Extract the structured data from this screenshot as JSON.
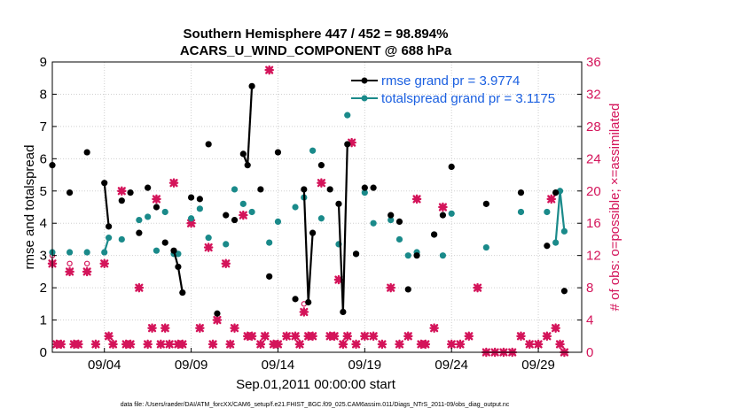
{
  "colors": {
    "rmse": "#000000",
    "spread": "#1a8a8a",
    "obs": "#d4145a",
    "legend_text": "#1a5fe0"
  },
  "chart_data": {
    "type": "line",
    "title": "Southern Hemisphere 447 / 452 = 98.894%",
    "subtitle": "ACARS_U_WIND_COMPONENT @ 688 hPa",
    "xlabel": "Sep.01,2011 00:00:00 start",
    "ylabel": "rmse and totalspread",
    "ylabel_right": "# of obs: o=possible; ×=assimilated",
    "footer": "data file: /Users/raeder/DAI/ATM_forcXX/CAM6_setup/f.e21.FHIST_BGC.f09_025.CAM6assim.011/Diags_NTrS_2011-09/obs_diag_output.nc",
    "xlim": [
      0.0,
      30.5
    ],
    "ylim": [
      0,
      9
    ],
    "ylim_right": [
      0,
      36
    ],
    "yticks": [
      0,
      1,
      2,
      3,
      4,
      5,
      6,
      7,
      8,
      9
    ],
    "yticks_right": [
      0,
      4,
      8,
      12,
      16,
      20,
      24,
      28,
      32,
      36
    ],
    "xticks": [
      {
        "value": 3.0,
        "label": "09/04"
      },
      {
        "value": 8.0,
        "label": "09/09"
      },
      {
        "value": 13.0,
        "label": "09/14"
      },
      {
        "value": 18.0,
        "label": "09/19"
      },
      {
        "value": 23.0,
        "label": "09/24"
      },
      {
        "value": 28.0,
        "label": "09/29"
      }
    ],
    "legend": [
      {
        "name": "rmse grand pr = 3.9774",
        "series": "rmse"
      },
      {
        "name": "totalspread grand pr = 3.1175",
        "series": "spread"
      }
    ],
    "series": [
      {
        "name": "rmse",
        "points": [
          [
            0.0,
            5.8
          ],
          [
            1.0,
            4.95
          ],
          [
            2.0,
            6.2
          ],
          [
            3.0,
            5.25
          ],
          [
            3.25,
            3.9
          ],
          [
            4.0,
            4.7
          ],
          [
            4.5,
            4.95
          ],
          [
            5.0,
            3.7
          ],
          [
            5.5,
            5.1
          ],
          [
            6.0,
            4.5
          ],
          [
            6.5,
            3.4
          ],
          [
            7.0,
            3.15
          ],
          [
            7.25,
            2.65
          ],
          [
            7.5,
            1.85
          ],
          [
            8.0,
            4.8
          ],
          [
            8.5,
            4.75
          ],
          [
            9.0,
            6.45
          ],
          [
            9.5,
            1.2
          ],
          [
            10.0,
            4.25
          ],
          [
            10.5,
            4.1
          ],
          [
            11.0,
            6.15
          ],
          [
            11.25,
            5.8
          ],
          [
            11.5,
            8.25
          ],
          [
            12.0,
            5.05
          ],
          [
            12.5,
            2.35
          ],
          [
            13.0,
            6.2
          ],
          [
            14.0,
            1.65
          ],
          [
            14.5,
            5.05
          ],
          [
            14.75,
            1.55
          ],
          [
            15.0,
            3.7
          ],
          [
            15.5,
            5.8
          ],
          [
            16.0,
            5.05
          ],
          [
            16.5,
            4.6
          ],
          [
            16.75,
            1.25
          ],
          [
            17.0,
            6.45
          ],
          [
            17.5,
            3.05
          ],
          [
            18.0,
            5.1
          ],
          [
            18.5,
            5.1
          ],
          [
            19.5,
            4.25
          ],
          [
            20.0,
            4.05
          ],
          [
            20.5,
            1.95
          ],
          [
            21.0,
            3.0
          ],
          [
            22.0,
            3.65
          ],
          [
            22.5,
            4.25
          ],
          [
            23.0,
            5.75
          ],
          [
            25.0,
            4.6
          ],
          [
            27.0,
            4.95
          ],
          [
            28.5,
            3.3
          ],
          [
            29.0,
            4.95
          ],
          [
            29.5,
            1.9
          ]
        ]
      },
      {
        "name": "totalspread",
        "points": [
          [
            0.0,
            3.1
          ],
          [
            1.0,
            3.1
          ],
          [
            2.0,
            3.1
          ],
          [
            3.0,
            3.1
          ],
          [
            3.25,
            3.55
          ],
          [
            4.0,
            3.5
          ],
          [
            5.0,
            4.1
          ],
          [
            5.5,
            4.2
          ],
          [
            6.0,
            3.15
          ],
          [
            6.5,
            4.35
          ],
          [
            7.0,
            3.05
          ],
          [
            7.25,
            3.05
          ],
          [
            8.0,
            4.15
          ],
          [
            8.5,
            4.45
          ],
          [
            9.0,
            3.55
          ],
          [
            10.0,
            3.35
          ],
          [
            10.5,
            5.05
          ],
          [
            11.0,
            4.6
          ],
          [
            11.5,
            4.35
          ],
          [
            12.5,
            3.4
          ],
          [
            13.0,
            4.05
          ],
          [
            14.0,
            4.5
          ],
          [
            14.5,
            4.8
          ],
          [
            15.0,
            6.25
          ],
          [
            15.5,
            4.15
          ],
          [
            16.5,
            3.35
          ],
          [
            17.0,
            7.35
          ],
          [
            17.5,
            3.05
          ],
          [
            18.0,
            4.95
          ],
          [
            18.5,
            4.0
          ],
          [
            19.5,
            4.1
          ],
          [
            20.0,
            3.5
          ],
          [
            20.5,
            3.0
          ],
          [
            21.0,
            3.1
          ],
          [
            22.0,
            3.65
          ],
          [
            22.5,
            3.0
          ],
          [
            23.0,
            4.3
          ],
          [
            25.0,
            3.25
          ],
          [
            27.0,
            4.35
          ],
          [
            28.5,
            4.35
          ],
          [
            29.0,
            3.4
          ],
          [
            29.25,
            5.0
          ],
          [
            29.5,
            3.75
          ]
        ]
      },
      {
        "name": "obs assimilated",
        "points": [
          [
            0.0,
            11
          ],
          [
            0.25,
            1
          ],
          [
            0.5,
            1
          ],
          [
            1.0,
            10
          ],
          [
            1.25,
            1
          ],
          [
            1.5,
            1
          ],
          [
            2.0,
            10
          ],
          [
            2.5,
            1
          ],
          [
            3.0,
            11
          ],
          [
            3.25,
            2
          ],
          [
            3.5,
            1
          ],
          [
            4.0,
            20
          ],
          [
            4.25,
            1
          ],
          [
            4.5,
            1
          ],
          [
            5.0,
            8
          ],
          [
            5.5,
            1
          ],
          [
            5.75,
            3
          ],
          [
            6.0,
            19
          ],
          [
            6.25,
            1
          ],
          [
            6.5,
            3
          ],
          [
            6.75,
            1
          ],
          [
            7.0,
            21
          ],
          [
            7.25,
            1
          ],
          [
            7.5,
            1
          ],
          [
            8.0,
            16
          ],
          [
            8.5,
            3
          ],
          [
            9.0,
            13
          ],
          [
            9.25,
            1
          ],
          [
            9.5,
            4
          ],
          [
            10.0,
            11
          ],
          [
            10.25,
            1
          ],
          [
            10.5,
            3
          ],
          [
            11.0,
            17
          ],
          [
            11.25,
            2
          ],
          [
            11.5,
            2
          ],
          [
            12.0,
            1
          ],
          [
            12.25,
            2
          ],
          [
            12.5,
            35
          ],
          [
            12.75,
            1
          ],
          [
            13.0,
            1
          ],
          [
            13.5,
            2
          ],
          [
            14.0,
            2
          ],
          [
            14.25,
            1
          ],
          [
            14.5,
            5
          ],
          [
            14.75,
            2
          ],
          [
            15.0,
            2
          ],
          [
            15.5,
            21
          ],
          [
            16.0,
            2
          ],
          [
            16.25,
            2
          ],
          [
            16.5,
            9
          ],
          [
            16.75,
            1
          ],
          [
            17.0,
            2
          ],
          [
            17.25,
            26
          ],
          [
            17.5,
            1
          ],
          [
            18.0,
            2
          ],
          [
            18.5,
            2
          ],
          [
            19.0,
            1
          ],
          [
            19.5,
            8
          ],
          [
            20.0,
            1
          ],
          [
            20.5,
            2
          ],
          [
            21.0,
            19
          ],
          [
            21.25,
            1
          ],
          [
            21.5,
            1
          ],
          [
            22.0,
            3
          ],
          [
            22.5,
            18
          ],
          [
            23.0,
            1
          ],
          [
            23.5,
            1
          ],
          [
            24.0,
            2
          ],
          [
            24.5,
            8
          ],
          [
            25.0,
            0
          ],
          [
            25.5,
            0
          ],
          [
            26.0,
            0
          ],
          [
            26.5,
            0
          ],
          [
            27.0,
            2
          ],
          [
            27.5,
            1
          ],
          [
            28.0,
            1
          ],
          [
            28.5,
            2
          ],
          [
            28.75,
            19
          ],
          [
            29.0,
            3
          ],
          [
            29.25,
            1
          ],
          [
            29.5,
            0
          ]
        ]
      },
      {
        "name": "obs possible",
        "points": [
          [
            0.0,
            12
          ],
          [
            1.0,
            11
          ],
          [
            2.0,
            11
          ],
          [
            14.5,
            6
          ]
        ]
      }
    ]
  }
}
